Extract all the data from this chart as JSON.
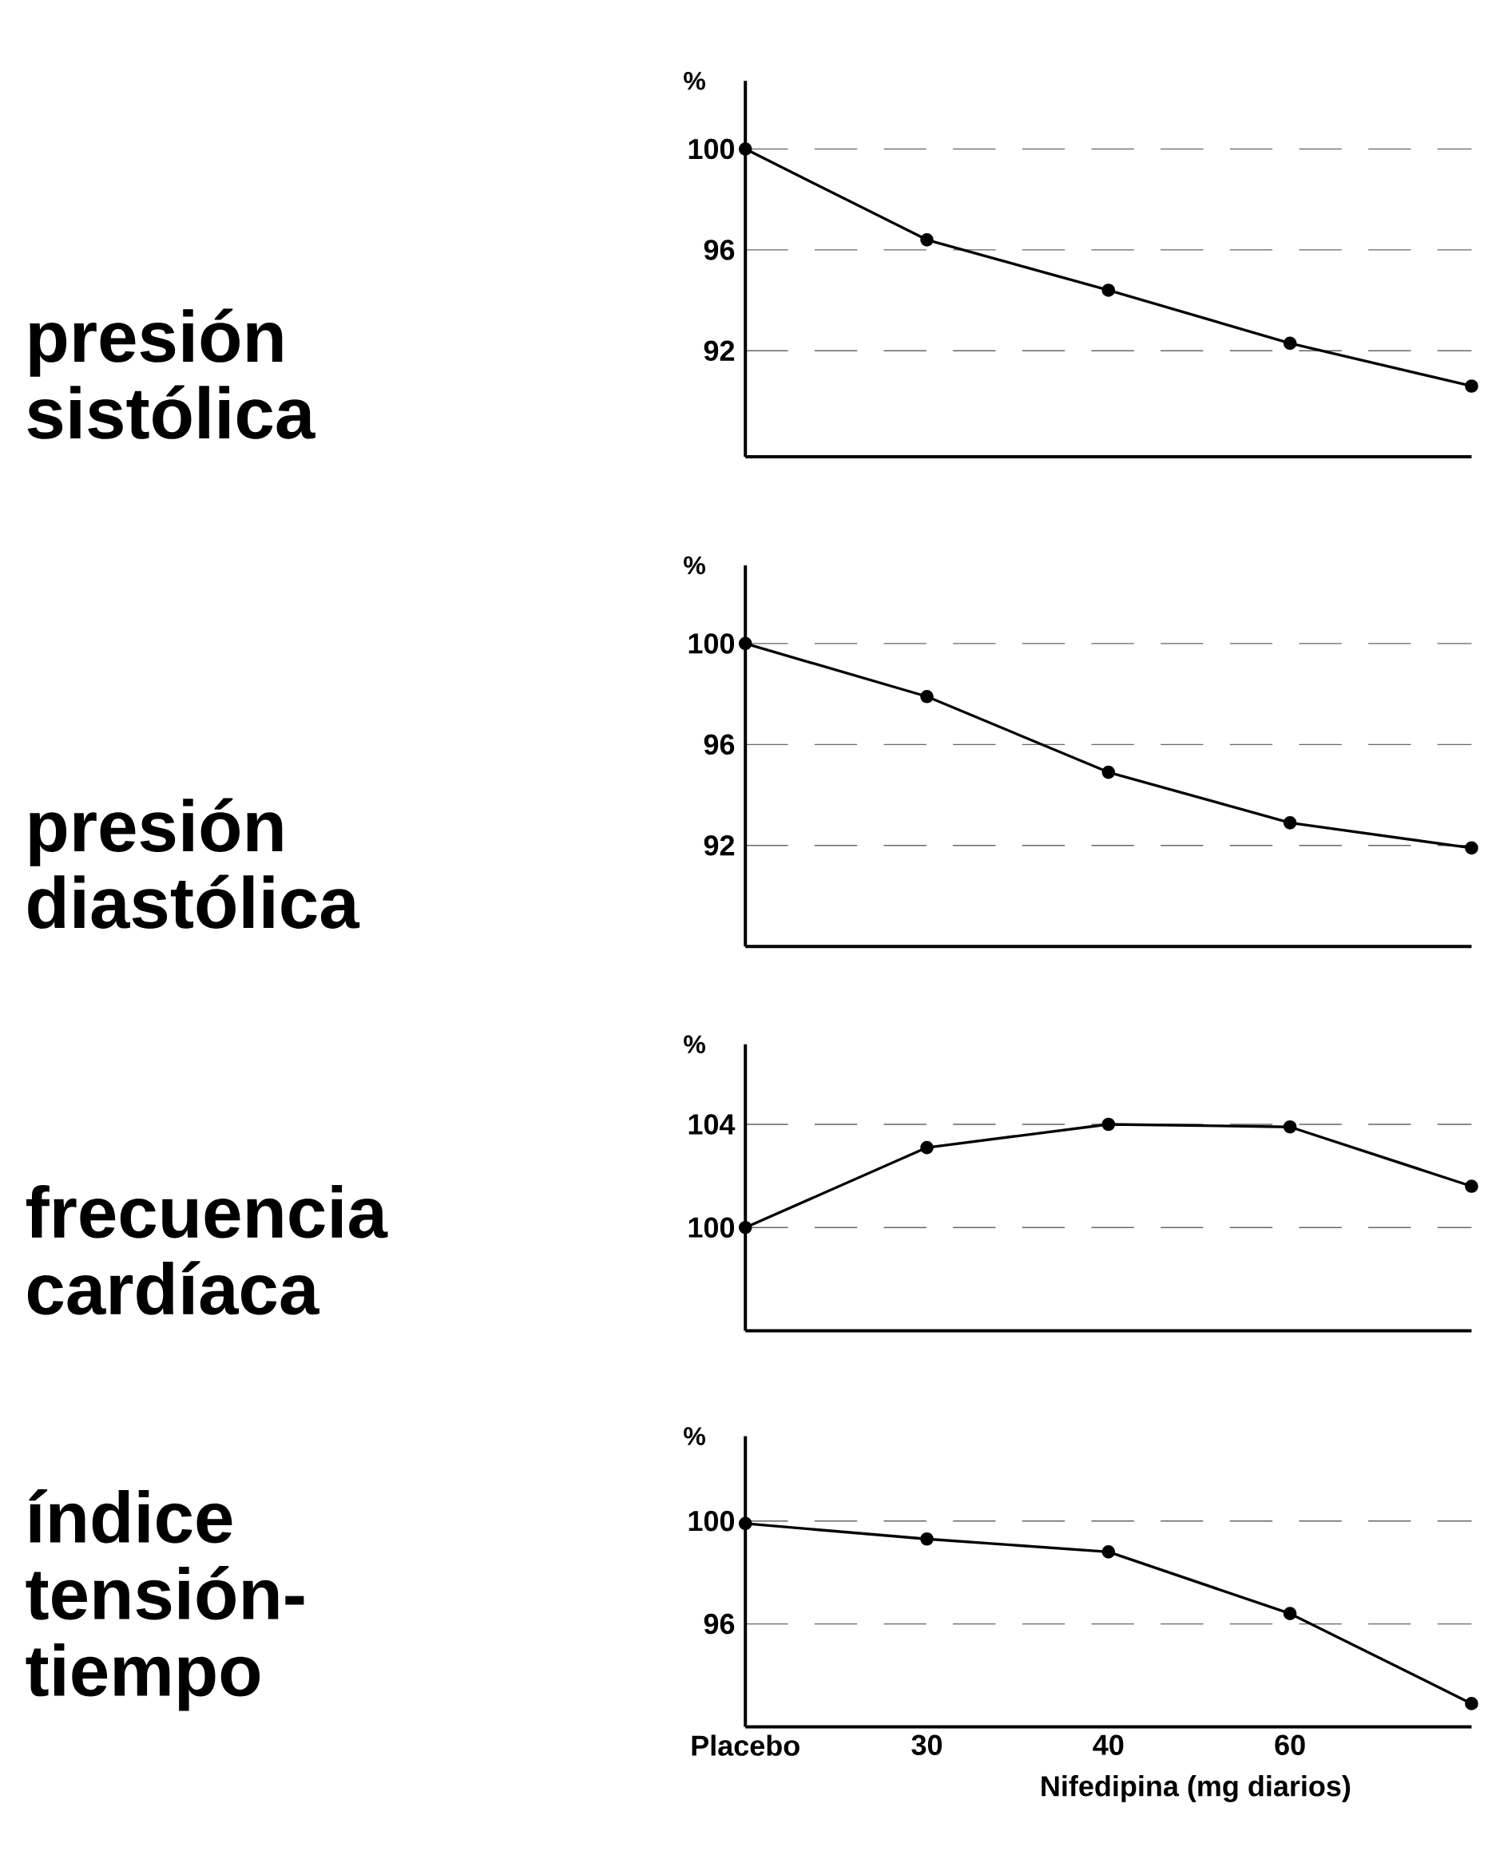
{
  "chart_data": [
    {
      "type": "line",
      "title": "presión sistólica",
      "ylabel": "%",
      "categories": [
        null,
        null,
        null,
        null,
        null
      ],
      "series": [
        {
          "color": "#000000",
          "values": [
            100,
            96.4,
            94.4,
            92.3,
            90.6
          ]
        }
      ],
      "ylim": [
        87.8,
        102.7
      ],
      "yticks": [
        92,
        96,
        100
      ],
      "grid": "y",
      "marker": "circle",
      "tick_labels": "y"
    },
    {
      "type": "line",
      "title": "presión diastólica",
      "ylabel": "%",
      "categories": [
        null,
        null,
        null,
        null,
        null
      ],
      "series": [
        {
          "color": "#000000",
          "values": [
            100,
            97.9,
            94.9,
            92.9,
            91.9
          ]
        }
      ],
      "ylim": [
        88,
        103.1
      ],
      "yticks": [
        92,
        96,
        100
      ],
      "grid": "y",
      "marker": "circle",
      "tick_labels": "y"
    },
    {
      "type": "line",
      "title": "frecuencia cardíaca",
      "ylabel": "%",
      "categories": [
        null,
        null,
        null,
        null,
        null
      ],
      "series": [
        {
          "color": "#000000",
          "values": [
            100,
            103.1,
            104,
            103.9,
            101.6
          ]
        }
      ],
      "ylim": [
        96,
        107.1
      ],
      "yticks": [
        100,
        104
      ],
      "grid": "y",
      "marker": "circle",
      "tick_labels": "y"
    },
    {
      "type": "line",
      "title": "índice tensión-tiempo",
      "ylabel": "%",
      "xlabel": "Nifedipina (mg diarios)",
      "categories": [
        "Placebo",
        "30",
        "40",
        "60",
        null
      ],
      "series": [
        {
          "color": "#000000",
          "values": [
            99.9,
            99.3,
            98.8,
            96.4,
            92.9
          ]
        }
      ],
      "ylim": [
        92,
        103.3
      ],
      "yticks": [
        96,
        100
      ],
      "grid": "y",
      "marker": "circle"
    }
  ]
}
